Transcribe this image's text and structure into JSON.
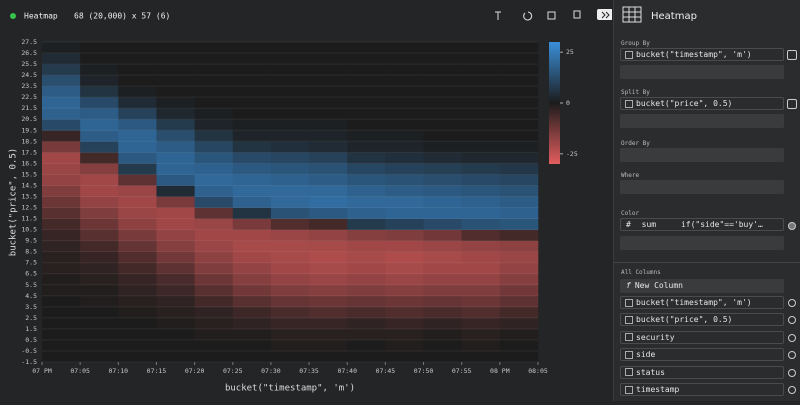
{
  "header": {
    "title": "Heatmap",
    "dims": "68 (20,000) x 57 (6)"
  },
  "chart_data": {
    "type": "heatmap",
    "x_label": "bucket(\"timestamp\", 'm')",
    "y_label": "bucket(\"price\", 0.5)",
    "xticks": [
      "07 PM",
      "07:05",
      "07:10",
      "07:15",
      "07:20",
      "07:25",
      "07:30",
      "07:35",
      "07:40",
      "07:45",
      "07:50",
      "07:55",
      "08 PM",
      "08:05"
    ],
    "ylim": [
      -1.5,
      27.5
    ],
    "yticks": [
      -1.5,
      -0.5,
      0.5,
      1.5,
      2.5,
      3.5,
      4.5,
      5.5,
      6.5,
      7.5,
      8.5,
      9.5,
      10.5,
      11.5,
      12.5,
      13.5,
      14.5,
      15.5,
      16.5,
      17.5,
      18.5,
      19.5,
      20.5,
      21.5,
      22.5,
      23.5,
      24.5,
      25.5,
      26.5,
      27.5
    ],
    "grid": true,
    "z": [
      [
        0,
        0,
        0,
        0,
        0,
        0,
        0,
        0,
        0,
        0,
        0,
        0,
        0
      ],
      [
        0,
        0,
        0,
        0,
        0,
        0,
        -1,
        -1,
        0,
        -1,
        0,
        -1,
        0
      ],
      [
        0,
        0,
        0,
        0,
        -1,
        -1,
        -2,
        -2,
        -2,
        -2,
        -1,
        -2,
        -1
      ],
      [
        0,
        0,
        0,
        -1,
        -2,
        -3,
        -4,
        -4,
        -3,
        -4,
        -3,
        -4,
        -3
      ],
      [
        0,
        0,
        -1,
        -2,
        -3,
        -5,
        -7,
        -8,
        -7,
        -8,
        -7,
        -8,
        -6
      ],
      [
        0,
        -1,
        -2,
        -3,
        -6,
        -9,
        -11,
        -12,
        -11,
        -12,
        -11,
        -12,
        -10
      ],
      [
        -1,
        -1,
        -3,
        -5,
        -9,
        -13,
        -15,
        -16,
        -15,
        -16,
        -15,
        -15,
        -13
      ],
      [
        -1,
        -2,
        -4,
        -7,
        -12,
        -16,
        -18,
        -19,
        -18,
        -19,
        -18,
        -18,
        -16
      ],
      [
        -2,
        -3,
        -6,
        -10,
        -15,
        -18,
        -20,
        -21,
        -20,
        -21,
        -20,
        -20,
        -18
      ],
      [
        -2,
        -4,
        -8,
        -13,
        -17,
        -20,
        -21,
        -22,
        -21,
        -22,
        -21,
        -20,
        -19
      ],
      [
        -3,
        -6,
        -11,
        -16,
        -19,
        -21,
        -21,
        -21,
        -20,
        -20,
        -19,
        -18,
        -17
      ],
      [
        -4,
        -9,
        -14,
        -18,
        -20,
        -20,
        -19,
        -18,
        -16,
        -15,
        -13,
        -8,
        -6
      ],
      [
        -6,
        -12,
        -17,
        -20,
        -19,
        -14,
        -8,
        -6,
        8,
        10,
        12,
        14,
        15
      ],
      [
        -9,
        -15,
        -19,
        -20,
        -10,
        6,
        14,
        16,
        18,
        19,
        19,
        19,
        18
      ],
      [
        -12,
        -18,
        -20,
        -14,
        12,
        18,
        20,
        21,
        20,
        20,
        19,
        18,
        17
      ],
      [
        -15,
        -20,
        -19,
        4,
        18,
        20,
        20,
        20,
        18,
        17,
        16,
        15,
        14
      ],
      [
        -18,
        -20,
        -10,
        16,
        20,
        19,
        18,
        17,
        15,
        14,
        13,
        12,
        11
      ],
      [
        -19,
        -16,
        8,
        19,
        18,
        16,
        15,
        14,
        11,
        10,
        9,
        8,
        7
      ],
      [
        -20,
        -6,
        16,
        19,
        15,
        12,
        11,
        10,
        6,
        5,
        4,
        3,
        3
      ],
      [
        -14,
        10,
        19,
        17,
        11,
        6,
        5,
        4,
        2,
        2,
        1,
        1,
        1
      ],
      [
        -4,
        17,
        19,
        13,
        6,
        2,
        2,
        2,
        1,
        1,
        0,
        0,
        0
      ],
      [
        12,
        19,
        16,
        8,
        2,
        1,
        1,
        1,
        0,
        0,
        0,
        0,
        0
      ],
      [
        18,
        17,
        10,
        3,
        1,
        0,
        0,
        0,
        0,
        0,
        0,
        0,
        0
      ],
      [
        19,
        12,
        4,
        1,
        0,
        0,
        0,
        0,
        0,
        0,
        0,
        0,
        0
      ],
      [
        17,
        6,
        1,
        0,
        0,
        0,
        0,
        0,
        0,
        0,
        0,
        0,
        0
      ],
      [
        13,
        2,
        0,
        0,
        0,
        0,
        0,
        0,
        0,
        0,
        0,
        0,
        0
      ],
      [
        8,
        1,
        0,
        0,
        0,
        0,
        0,
        0,
        0,
        0,
        0,
        0,
        0
      ],
      [
        4,
        0,
        0,
        0,
        0,
        0,
        0,
        0,
        0,
        0,
        0,
        0,
        0
      ],
      [
        1,
        0,
        0,
        0,
        0,
        0,
        0,
        0,
        0,
        0,
        0,
        0,
        0
      ]
    ],
    "colorlim": [
      -30,
      30
    ],
    "colorticks": [
      25,
      0,
      -25
    ],
    "colors": {
      "positive": "#3a8fd9",
      "zero": "#1c1c1c",
      "negative": "#e35d5e"
    }
  },
  "sidebar": {
    "plugin": "Heatmap",
    "group_by": {
      "label": "Group By",
      "items": [
        "bucket(\"timestamp\", 'm')"
      ]
    },
    "split_by": {
      "label": "Split By",
      "items": [
        "bucket(\"price\", 0.5)"
      ]
    },
    "order_by": {
      "label": "Order By"
    },
    "where": {
      "label": "Where"
    },
    "color": {
      "label": "Color",
      "type": "#",
      "agg": "sum",
      "expr": "if(\"side\"=='buy'…"
    },
    "all_columns": {
      "label": "All Columns",
      "new_column": "New Column",
      "columns": [
        "bucket(\"timestamp\", 'm')",
        "bucket(\"price\", 0.5)",
        "security",
        "side",
        "status",
        "timestamp"
      ]
    }
  }
}
